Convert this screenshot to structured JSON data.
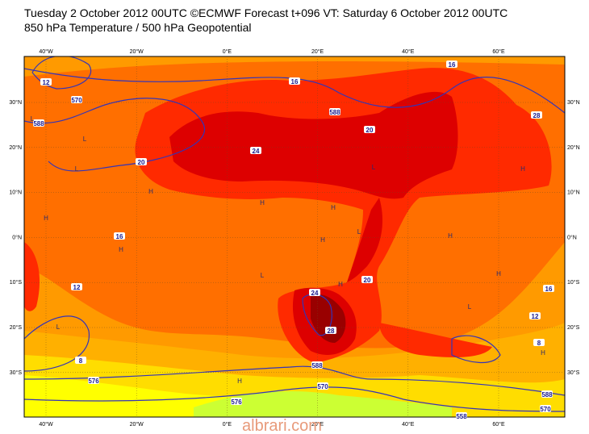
{
  "header": {
    "line1": "Tuesday 2 October 2012 00UTC ©ECMWF Forecast t+096 VT: Saturday 6 October 2012 00UTC",
    "line2": "850 hPa Temperature / 500 hPa Geopotential"
  },
  "map": {
    "longitude_labels": [
      "40°W",
      "20°W",
      "0°E",
      "20°E",
      "40°E",
      "60°E"
    ],
    "latitude_labels": [
      "30°N",
      "20°N",
      "10°N",
      "0°N",
      "10°S",
      "20°S",
      "30°S"
    ],
    "contour_labels": [
      "12",
      "570",
      "588",
      "16",
      "588",
      "16",
      "20",
      "24",
      "20",
      "16",
      "12",
      "8",
      "576",
      "24",
      "28",
      "20",
      "16",
      "12",
      "8",
      "588",
      "570",
      "576",
      "588",
      "570",
      "558",
      "28"
    ],
    "centers": [
      "L",
      "L",
      "H",
      "H",
      "H",
      "H",
      "L",
      "H",
      "L",
      "H",
      "L",
      "H",
      "H",
      "L",
      "H",
      "L",
      "H",
      "L",
      "H",
      "H"
    ]
  },
  "watermark": "albrari.com"
}
